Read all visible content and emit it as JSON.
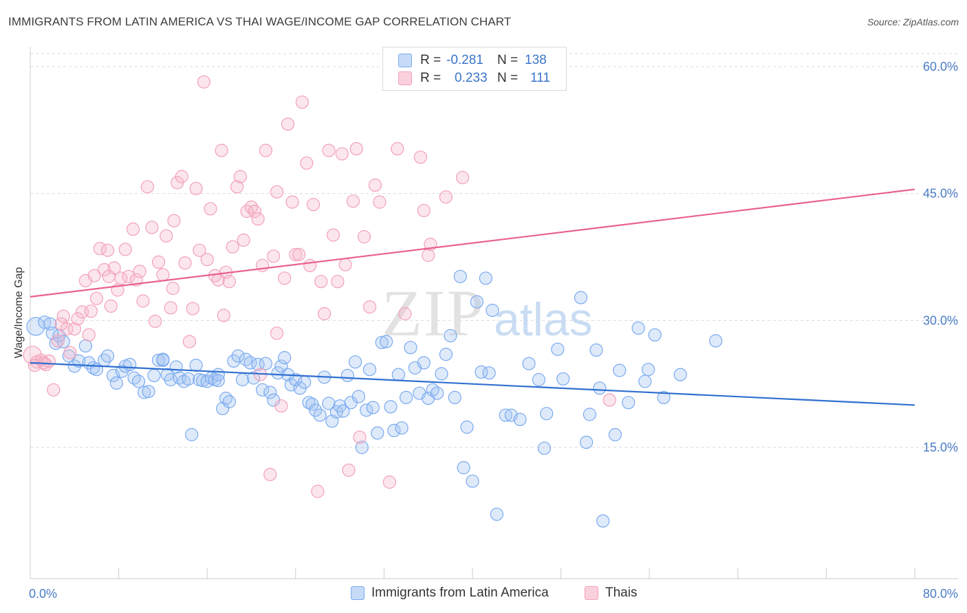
{
  "title": "IMMIGRANTS FROM LATIN AMERICA VS THAI WAGE/INCOME GAP CORRELATION CHART",
  "source": "Source: ZipAtlas.com",
  "watermark": "ZIPatlas",
  "legend": {
    "rows": [
      {
        "r_label": "R =",
        "r_value": "-0.281",
        "n_label": "N =",
        "n_value": "138",
        "color": "#7aaaf0"
      },
      {
        "r_label": "R =",
        "r_value": "0.233",
        "n_label": "N =",
        "n_value": "111",
        "color": "#f2a0b8"
      }
    ]
  },
  "bottom_legend": [
    {
      "label": "Immigrants from Latin America",
      "color": "#7aaaf0"
    },
    {
      "label": "Thais",
      "color": "#f2a0b8"
    }
  ],
  "chart_data": {
    "type": "scatter",
    "title": "IMMIGRANTS FROM LATIN AMERICA VS THAI WAGE/INCOME GAP CORRELATION CHART",
    "xlabel": "",
    "ylabel": "Wage/Income Gap",
    "xlim": [
      0,
      80
    ],
    "ylim": [
      0,
      62
    ],
    "x_tick_labels": [
      "0.0%",
      "80.0%"
    ],
    "y_ticks": [
      15,
      30,
      45,
      60
    ],
    "y_tick_labels": [
      "15.0%",
      "30.0%",
      "45.0%",
      "60.0%"
    ],
    "grid": "horizontal dashed",
    "legend_position": "top-center",
    "series": [
      {
        "name": "Immigrants from Latin America",
        "color": "#7aaaf0",
        "line_color": "#2f6fd0",
        "trend": {
          "x": [
            0,
            80
          ],
          "y": [
            25.0,
            20.0
          ]
        },
        "points": [
          [
            0.5,
            29.3
          ],
          [
            1.3,
            29.8
          ],
          [
            1.8,
            29.6
          ],
          [
            2.0,
            28.5
          ],
          [
            2.3,
            27.3
          ],
          [
            2.6,
            28.2
          ],
          [
            3.0,
            27.5
          ],
          [
            3.5,
            25.8
          ],
          [
            4.0,
            24.6
          ],
          [
            4.4,
            25.2
          ],
          [
            5.0,
            27.0
          ],
          [
            5.3,
            25.0
          ],
          [
            5.7,
            24.4
          ],
          [
            6.0,
            24.2
          ],
          [
            6.7,
            25.3
          ],
          [
            7.0,
            25.8
          ],
          [
            7.5,
            23.5
          ],
          [
            7.8,
            22.6
          ],
          [
            8.3,
            24.0
          ],
          [
            8.6,
            24.6
          ],
          [
            9.0,
            24.8
          ],
          [
            9.4,
            23.2
          ],
          [
            9.8,
            22.8
          ],
          [
            10.3,
            21.5
          ],
          [
            10.7,
            21.6
          ],
          [
            11.2,
            23.5
          ],
          [
            11.6,
            25.3
          ],
          [
            12.0,
            25.3
          ],
          [
            12.4,
            23.6
          ],
          [
            12.7,
            23.0
          ],
          [
            13.2,
            24.5
          ],
          [
            13.5,
            23.2
          ],
          [
            13.9,
            22.8
          ],
          [
            14.3,
            23.1
          ],
          [
            14.6,
            16.5
          ],
          [
            15.0,
            24.7
          ],
          [
            15.3,
            23.0
          ],
          [
            15.6,
            22.9
          ],
          [
            16.0,
            22.8
          ],
          [
            16.4,
            23.2
          ],
          [
            16.7,
            23.0
          ],
          [
            17.0,
            23.6
          ],
          [
            17.4,
            19.6
          ],
          [
            17.7,
            20.8
          ],
          [
            18.0,
            20.4
          ],
          [
            18.4,
            25.2
          ],
          [
            18.8,
            25.8
          ],
          [
            19.2,
            23.0
          ],
          [
            19.5,
            25.4
          ],
          [
            19.9,
            25.0
          ],
          [
            20.2,
            23.2
          ],
          [
            20.6,
            24.8
          ],
          [
            21.0,
            21.8
          ],
          [
            21.3,
            24.9
          ],
          [
            21.7,
            21.5
          ],
          [
            22.0,
            20.6
          ],
          [
            22.4,
            23.8
          ],
          [
            22.7,
            24.6
          ],
          [
            23.0,
            25.6
          ],
          [
            23.3,
            23.6
          ],
          [
            23.6,
            22.4
          ],
          [
            24.0,
            23.0
          ],
          [
            24.4,
            22.0
          ],
          [
            24.8,
            22.7
          ],
          [
            25.2,
            20.3
          ],
          [
            25.5,
            20.1
          ],
          [
            25.8,
            19.4
          ],
          [
            26.2,
            18.8
          ],
          [
            26.6,
            23.3
          ],
          [
            27.0,
            20.2
          ],
          [
            27.3,
            18.1
          ],
          [
            27.7,
            19.2
          ],
          [
            28.0,
            19.9
          ],
          [
            28.3,
            19.3
          ],
          [
            28.7,
            23.5
          ],
          [
            29.0,
            20.3
          ],
          [
            29.4,
            25.1
          ],
          [
            29.7,
            21.0
          ],
          [
            30.0,
            15.0
          ],
          [
            30.4,
            19.4
          ],
          [
            30.7,
            24.2
          ],
          [
            31.0,
            19.7
          ],
          [
            31.4,
            16.7
          ],
          [
            31.8,
            27.4
          ],
          [
            32.2,
            27.5
          ],
          [
            32.6,
            19.8
          ],
          [
            32.9,
            17.0
          ],
          [
            33.3,
            23.6
          ],
          [
            33.6,
            17.3
          ],
          [
            34.0,
            20.9
          ],
          [
            34.4,
            26.8
          ],
          [
            34.8,
            24.4
          ],
          [
            35.2,
            21.4
          ],
          [
            35.6,
            25.0
          ],
          [
            36.0,
            20.8
          ],
          [
            36.4,
            21.8
          ],
          [
            36.8,
            21.4
          ],
          [
            37.2,
            23.7
          ],
          [
            37.6,
            26.0
          ],
          [
            38.0,
            28.2
          ],
          [
            38.4,
            20.9
          ],
          [
            38.9,
            35.2
          ],
          [
            39.2,
            12.6
          ],
          [
            39.5,
            17.4
          ],
          [
            40.0,
            11.0
          ],
          [
            40.4,
            32.2
          ],
          [
            40.8,
            23.9
          ],
          [
            41.2,
            35.0
          ],
          [
            41.5,
            23.8
          ],
          [
            41.8,
            31.2
          ],
          [
            42.2,
            7.1
          ],
          [
            43.0,
            18.8
          ],
          [
            43.5,
            18.8
          ],
          [
            44.3,
            18.3
          ],
          [
            45.1,
            24.9
          ],
          [
            46.0,
            23.0
          ],
          [
            46.5,
            14.9
          ],
          [
            46.7,
            19.0
          ],
          [
            47.7,
            26.6
          ],
          [
            48.2,
            23.1
          ],
          [
            49.8,
            32.7
          ],
          [
            50.3,
            15.6
          ],
          [
            50.6,
            18.9
          ],
          [
            51.2,
            26.5
          ],
          [
            51.5,
            22.0
          ],
          [
            51.8,
            6.3
          ],
          [
            52.9,
            16.5
          ],
          [
            53.3,
            24.1
          ],
          [
            54.1,
            20.3
          ],
          [
            55.0,
            29.1
          ],
          [
            55.6,
            22.8
          ],
          [
            55.9,
            24.2
          ],
          [
            57.3,
            20.9
          ],
          [
            58.8,
            23.6
          ],
          [
            62.0,
            27.6
          ],
          [
            56.5,
            28.3
          ],
          [
            17.0,
            22.9
          ],
          [
            12.0,
            25.4
          ]
        ]
      },
      {
        "name": "Thais",
        "color": "#f2a0b8",
        "line_color": "#e8608f",
        "trend": {
          "x": [
            0,
            80
          ],
          "y": [
            32.8,
            45.5
          ]
        },
        "points": [
          [
            0.2,
            25.9
          ],
          [
            0.6,
            25.1
          ],
          [
            1.0,
            25.3
          ],
          [
            1.4,
            24.8
          ],
          [
            1.7,
            25.2
          ],
          [
            2.1,
            21.8
          ],
          [
            2.5,
            27.6
          ],
          [
            3.0,
            30.5
          ],
          [
            3.3,
            29.0
          ],
          [
            3.6,
            26.2
          ],
          [
            4.0,
            29.0
          ],
          [
            4.3,
            30.2
          ],
          [
            4.7,
            31.0
          ],
          [
            5.0,
            34.7
          ],
          [
            5.3,
            28.3
          ],
          [
            5.8,
            35.3
          ],
          [
            6.0,
            32.6
          ],
          [
            6.3,
            38.5
          ],
          [
            6.7,
            36.0
          ],
          [
            7.0,
            38.3
          ],
          [
            7.3,
            31.7
          ],
          [
            7.6,
            36.2
          ],
          [
            7.9,
            33.6
          ],
          [
            8.2,
            35.0
          ],
          [
            8.6,
            38.4
          ],
          [
            8.9,
            35.2
          ],
          [
            9.3,
            40.8
          ],
          [
            9.6,
            34.8
          ],
          [
            9.9,
            35.8
          ],
          [
            10.2,
            32.3
          ],
          [
            10.6,
            45.8
          ],
          [
            11.0,
            41.0
          ],
          [
            11.3,
            29.9
          ],
          [
            11.6,
            36.9
          ],
          [
            12.0,
            35.4
          ],
          [
            12.3,
            40.0
          ],
          [
            12.7,
            31.5
          ],
          [
            13.0,
            41.8
          ],
          [
            13.3,
            46.3
          ],
          [
            13.7,
            47.0
          ],
          [
            14.0,
            36.8
          ],
          [
            14.4,
            27.5
          ],
          [
            14.7,
            31.4
          ],
          [
            15.0,
            45.6
          ],
          [
            15.3,
            38.3
          ],
          [
            15.7,
            58.2
          ],
          [
            16.0,
            37.2
          ],
          [
            16.3,
            43.2
          ],
          [
            16.7,
            35.3
          ],
          [
            17.0,
            34.8
          ],
          [
            17.3,
            50.1
          ],
          [
            17.7,
            35.7
          ],
          [
            18.0,
            34.6
          ],
          [
            18.3,
            38.7
          ],
          [
            18.7,
            45.8
          ],
          [
            19.0,
            47.0
          ],
          [
            19.3,
            39.5
          ],
          [
            19.6,
            42.9
          ],
          [
            20.0,
            43.4
          ],
          [
            20.3,
            42.9
          ],
          [
            20.6,
            42.0
          ],
          [
            21.0,
            36.5
          ],
          [
            21.3,
            50.1
          ],
          [
            21.7,
            11.8
          ],
          [
            22.0,
            37.6
          ],
          [
            22.3,
            45.2
          ],
          [
            22.7,
            19.9
          ],
          [
            23.0,
            35.0
          ],
          [
            23.3,
            53.2
          ],
          [
            23.7,
            44.0
          ],
          [
            24.0,
            37.8
          ],
          [
            24.3,
            37.8
          ],
          [
            24.6,
            55.8
          ],
          [
            25.0,
            48.6
          ],
          [
            25.3,
            36.5
          ],
          [
            25.6,
            43.7
          ],
          [
            26.0,
            9.8
          ],
          [
            26.3,
            34.6
          ],
          [
            26.6,
            30.8
          ],
          [
            27.0,
            50.1
          ],
          [
            27.4,
            40.1
          ],
          [
            27.8,
            34.6
          ],
          [
            28.2,
            49.7
          ],
          [
            28.5,
            36.6
          ],
          [
            28.8,
            12.3
          ],
          [
            29.2,
            44.1
          ],
          [
            29.5,
            50.3
          ],
          [
            29.8,
            16.2
          ],
          [
            30.2,
            39.9
          ],
          [
            30.7,
            31.6
          ],
          [
            31.2,
            46.0
          ],
          [
            31.6,
            44.0
          ],
          [
            32.5,
            10.9
          ],
          [
            33.2,
            50.3
          ],
          [
            33.9,
            30.8
          ],
          [
            35.3,
            49.3
          ],
          [
            35.6,
            43.0
          ],
          [
            36.0,
            37.7
          ],
          [
            36.2,
            39.0
          ],
          [
            37.6,
            44.6
          ],
          [
            39.1,
            46.9
          ],
          [
            52.4,
            20.6
          ],
          [
            0.4,
            24.7
          ],
          [
            1.2,
            25.0
          ],
          [
            2.8,
            29.6
          ],
          [
            5.5,
            31.1
          ],
          [
            7.1,
            35.2
          ],
          [
            12.9,
            33.8
          ],
          [
            17.5,
            30.6
          ],
          [
            22.3,
            28.5
          ],
          [
            20.8,
            23.6
          ]
        ]
      }
    ]
  }
}
